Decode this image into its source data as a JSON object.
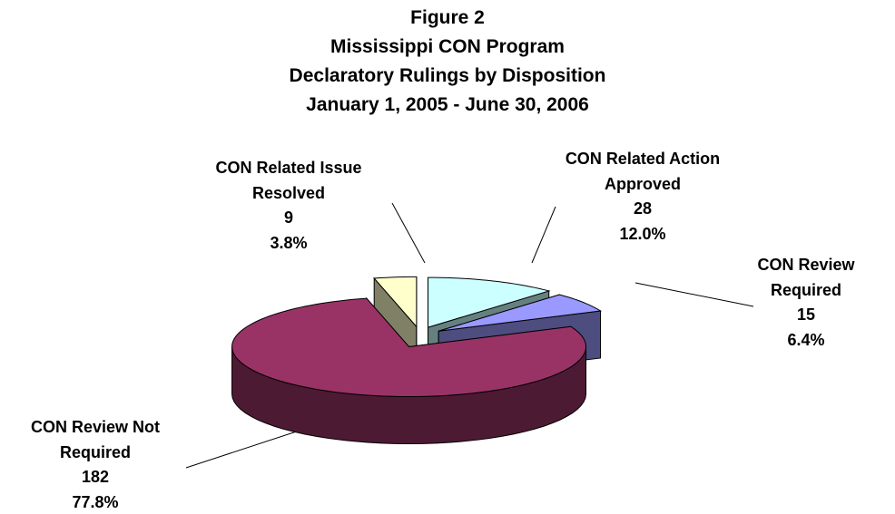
{
  "chart_data": {
    "type": "pie",
    "title": [
      "Figure 2",
      "Mississippi CON Program",
      "Declaratory Rulings by Disposition",
      "January 1, 2005  -  June 30, 2006"
    ],
    "categories": [
      "CON Related Action Approved",
      "CON Review Required",
      "CON Review Not Required",
      "CON Related Issue Resolved"
    ],
    "values": [
      28,
      15,
      182,
      9
    ],
    "percents": [
      12.0,
      6.4,
      77.8,
      3.8
    ],
    "percent_labels": [
      "12.0%",
      "6.4%",
      "77.8%",
      "3.8%"
    ],
    "colors": [
      "#ccffff",
      "#9999ff",
      "#993366",
      "#ffffcc"
    ]
  }
}
